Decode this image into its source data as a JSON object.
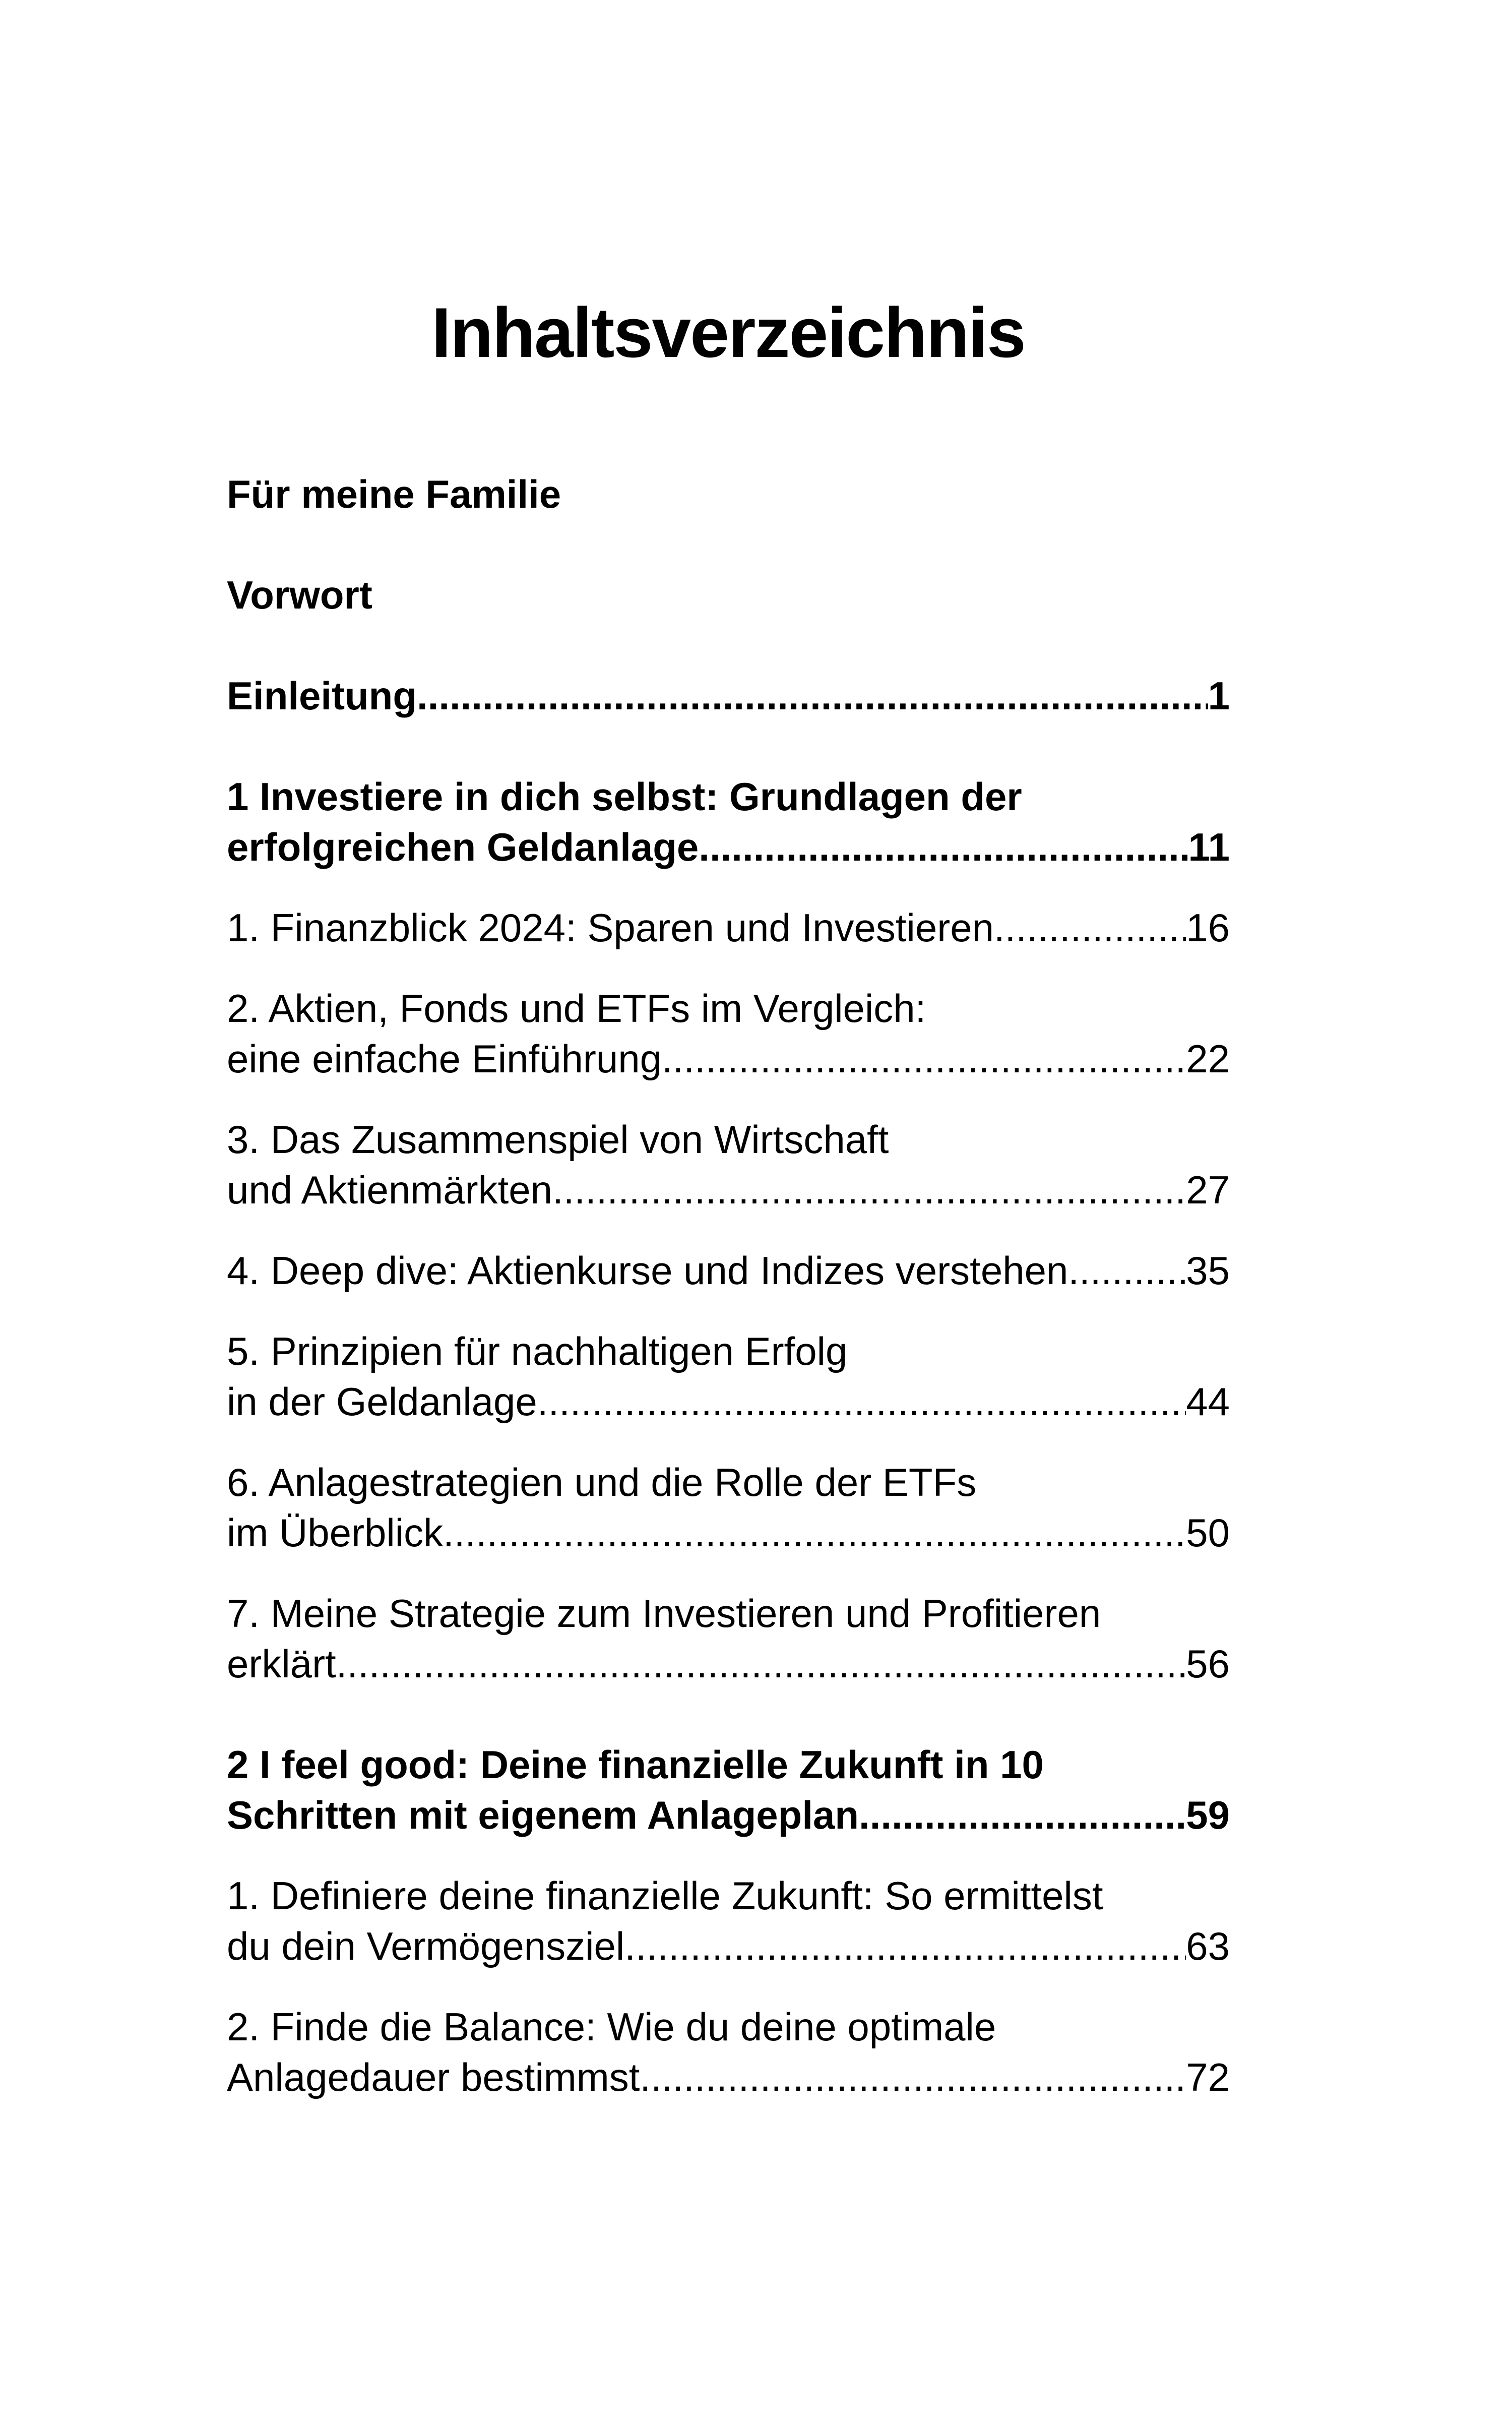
{
  "page": {
    "title": "Inhaltsverzeichnis",
    "background_color": "#ffffff",
    "text_color": "#000000"
  },
  "toc": {
    "entries": [
      {
        "bold": true,
        "lines": [
          {
            "text": "Für meine Familie"
          }
        ]
      },
      {
        "bold": true,
        "lines": [
          {
            "text": "Vorwort"
          }
        ]
      },
      {
        "bold": true,
        "lines": [
          {
            "text": "Einleitung",
            "page": "1"
          }
        ]
      },
      {
        "bold": true,
        "lines": [
          {
            "text": "1 Investiere in dich selbst: Grundlagen der"
          },
          {
            "text": "erfolgreichen Geldanlage",
            "page": "11"
          }
        ]
      },
      {
        "bold": false,
        "lines": [
          {
            "text": "1. Finanzblick 2024: Sparen und Investieren",
            "page": "16"
          }
        ]
      },
      {
        "bold": false,
        "lines": [
          {
            "text": "2. Aktien, Fonds und ETFs im Vergleich:"
          },
          {
            "text": "eine einfache Einführung",
            "page": "22"
          }
        ]
      },
      {
        "bold": false,
        "lines": [
          {
            "text": "3. Das Zusammenspiel von Wirtschaft"
          },
          {
            "text": "und Aktienmärkten",
            "page": "27"
          }
        ]
      },
      {
        "bold": false,
        "lines": [
          {
            "text": "4. Deep dive: Aktienkurse und Indizes verstehen",
            "page": "35"
          }
        ]
      },
      {
        "bold": false,
        "lines": [
          {
            "text": "5. Prinzipien für nachhaltigen Erfolg"
          },
          {
            "text": "in der Geldanlage",
            "page": "44"
          }
        ]
      },
      {
        "bold": false,
        "lines": [
          {
            "text": "6. Anlagestrategien und die Rolle der ETFs"
          },
          {
            "text": "im Überblick",
            "page": "50"
          }
        ]
      },
      {
        "bold": false,
        "lines": [
          {
            "text": "7. Meine Strategie zum Investieren und Profitieren"
          },
          {
            "text": "erklärt",
            "page": "56"
          }
        ]
      },
      {
        "bold": true,
        "lines": [
          {
            "text": "2 I feel good: Deine finanzielle Zukunft in 10"
          },
          {
            "text": "Schritten mit eigenem Anlageplan",
            "page": "59"
          }
        ]
      },
      {
        "bold": false,
        "lines": [
          {
            "text": "1. Definiere deine finanzielle Zukunft: So ermittelst"
          },
          {
            "text": "du dein Vermögensziel",
            "page": "63"
          }
        ]
      },
      {
        "bold": false,
        "lines": [
          {
            "text": "2. Finde die Balance: Wie du deine optimale"
          },
          {
            "text": "Anlagedauer bestimmst",
            "page": "72"
          }
        ]
      }
    ]
  }
}
